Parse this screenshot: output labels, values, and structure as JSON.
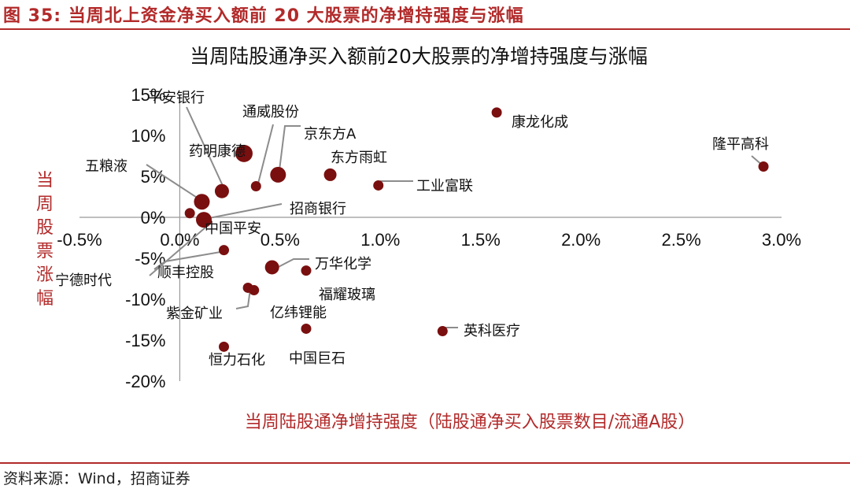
{
  "figure_title": "图 35:  当周北上资金净买入额前 20 大股票的净增持强度与涨幅",
  "source": "资料来源：Wind，招商证券",
  "colors": {
    "accent": "#b22a2a",
    "marker": "#7a0f0f",
    "leader": "#8c8c8c"
  },
  "chart_data": {
    "type": "scatter",
    "title": "当周陆股通净买入额前20大股票的净增持强度与涨幅",
    "xlabel": "当周陆股通净增持强度（陆股通净买入股票数目/流通A股）",
    "ylabel": "当周股票涨幅",
    "xlim": [
      -0.5,
      3.0
    ],
    "ylim": [
      -20,
      15
    ],
    "x_ticks": [
      "-0.5%",
      "0.0%",
      "0.5%",
      "1.0%",
      "1.5%",
      "2.0%",
      "2.5%",
      "3.0%"
    ],
    "y_ticks": [
      "15%",
      "10%",
      "5%",
      "0%",
      "-5%",
      "-10%",
      "-15%",
      "-20%"
    ],
    "grid": false,
    "points": [
      {
        "name": "平安银行",
        "x": 0.21,
        "y": 3.2
      },
      {
        "name": "通威股份",
        "x": 0.38,
        "y": 3.8
      },
      {
        "name": "京东方A",
        "x": 0.49,
        "y": 5.2
      },
      {
        "name": "药明康德",
        "x": 0.32,
        "y": 7.8
      },
      {
        "name": "东方雨虹",
        "x": 0.75,
        "y": 5.2
      },
      {
        "name": "康龙化成",
        "x": 1.58,
        "y": 12.8
      },
      {
        "name": "隆平高科",
        "x": 2.91,
        "y": 6.2
      },
      {
        "name": "工业富联",
        "x": 0.99,
        "y": 3.9
      },
      {
        "name": "五粮液",
        "x": 0.11,
        "y": 1.9
      },
      {
        "name": "招商银行",
        "x": 0.05,
        "y": 0.5
      },
      {
        "name": "中国平安",
        "x": 0.12,
        "y": -0.3
      },
      {
        "name": "宁德时代",
        "x": 0.22,
        "y": -4.0
      },
      {
        "name": "顺丰控股",
        "x": 0.46,
        "y": -6.1
      },
      {
        "name": "万华化学",
        "x": 0.46,
        "y": -6.1
      },
      {
        "name": "福耀玻璃",
        "x": 0.63,
        "y": -6.5
      },
      {
        "name": "紫金矿业",
        "x": 0.34,
        "y": -8.6
      },
      {
        "name": "亿纬锂能",
        "x": 0.37,
        "y": -8.9
      },
      {
        "name": "中国巨石",
        "x": 0.63,
        "y": -13.6
      },
      {
        "name": "英科医疗",
        "x": 1.31,
        "y": -13.9
      },
      {
        "name": "恒力石化",
        "x": 0.22,
        "y": -15.8
      }
    ]
  }
}
